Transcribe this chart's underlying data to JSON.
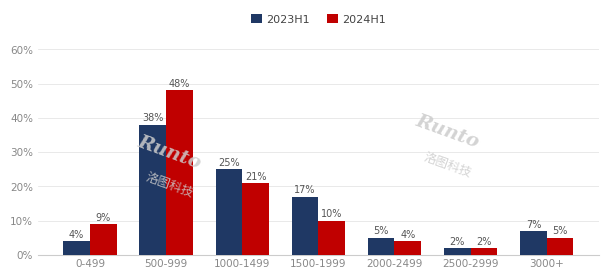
{
  "categories": [
    "0-499",
    "500-999",
    "1000-1499",
    "1500-1999",
    "2000-2499",
    "2500-2999",
    "3000+"
  ],
  "series_2023": [
    4,
    38,
    25,
    17,
    5,
    2,
    7
  ],
  "series_2024": [
    9,
    48,
    21,
    10,
    4,
    2,
    5
  ],
  "color_2023": "#1f3864",
  "color_2024": "#c00000",
  "legend_labels": [
    "2023H1",
    "2024H1"
  ],
  "ylim": [
    0,
    60
  ],
  "yticks": [
    0,
    10,
    20,
    30,
    40,
    50,
    60
  ],
  "ytick_labels": [
    "0%",
    "10%",
    "20%",
    "30%",
    "40%",
    "50%",
    "60%"
  ],
  "bar_width": 0.35,
  "background_color": "#ffffff",
  "label_fontsize": 7.0,
  "tick_fontsize": 7.5
}
